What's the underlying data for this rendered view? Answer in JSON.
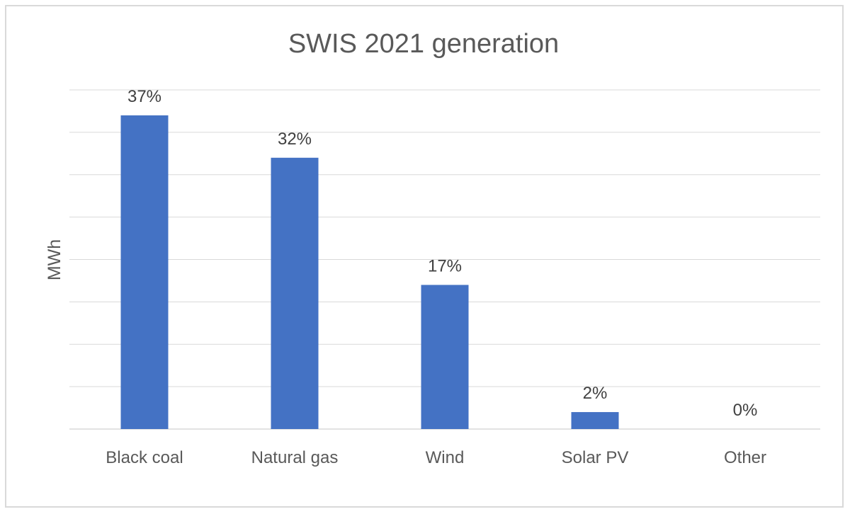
{
  "chart_data": {
    "type": "bar",
    "title": "SWIS 2021 generation",
    "xlabel": "",
    "ylabel": "MWh",
    "categories": [
      "Black coal",
      "Natural gas",
      "Wind",
      "Solar PV",
      "Other"
    ],
    "values": [
      37,
      32,
      17,
      2,
      0
    ],
    "data_labels": [
      "37%",
      "32%",
      "17%",
      "2%",
      "0%"
    ],
    "ylim": [
      0,
      40
    ],
    "gridlines": "horizontal",
    "legend": "none",
    "bar_color": "#4472c4",
    "gridline_color": "#d9d9d9"
  }
}
